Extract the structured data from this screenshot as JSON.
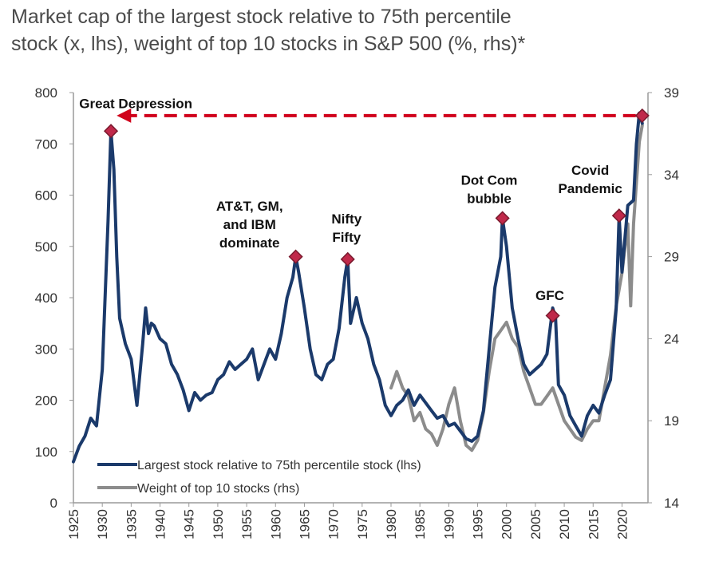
{
  "chart_data": {
    "type": "line",
    "title": "Market cap of the largest stock relative to 75th percentile stock (x, lhs), weight of top 10 stocks in S&P 500 (%, rhs)*",
    "title_line1": "Market cap of the largest stock relative to 75th percentile",
    "title_line2": "stock (x, lhs), weight of top 10 stocks in S&P 500 (%, rhs)*",
    "x_ticks": [
      "1925",
      "1930",
      "1935",
      "1940",
      "1945",
      "1950",
      "1955",
      "1960",
      "1965",
      "1970",
      "1975",
      "1980",
      "1985",
      "1990",
      "1995",
      "2000",
      "2005",
      "2010",
      "2015",
      "2020"
    ],
    "xlim": [
      1925,
      2024.5
    ],
    "y_left": {
      "ticks": [
        "0",
        "100",
        "200",
        "300",
        "400",
        "500",
        "600",
        "700",
        "800"
      ],
      "lim": [
        0,
        800
      ]
    },
    "y_right": {
      "ticks": [
        "14",
        "19",
        "24",
        "29",
        "34",
        "39"
      ],
      "lim": [
        14,
        39
      ]
    },
    "series": [
      {
        "name": "Largest stock relative to 75th percentile stock (lhs)",
        "axis": "left",
        "color": "#1b3a6b",
        "points": [
          [
            1925,
            80
          ],
          [
            1926,
            110
          ],
          [
            1927,
            130
          ],
          [
            1928,
            165
          ],
          [
            1929,
            150
          ],
          [
            1930,
            260
          ],
          [
            1931,
            550
          ],
          [
            1931.5,
            725
          ],
          [
            1932,
            650
          ],
          [
            1932.5,
            480
          ],
          [
            1933,
            360
          ],
          [
            1934,
            310
          ],
          [
            1935,
            280
          ],
          [
            1936,
            190
          ],
          [
            1937,
            310
          ],
          [
            1937.5,
            380
          ],
          [
            1938,
            330
          ],
          [
            1938.5,
            350
          ],
          [
            1939,
            345
          ],
          [
            1940,
            320
          ],
          [
            1941,
            310
          ],
          [
            1942,
            270
          ],
          [
            1943,
            250
          ],
          [
            1944,
            220
          ],
          [
            1945,
            180
          ],
          [
            1946,
            215
          ],
          [
            1947,
            200
          ],
          [
            1948,
            210
          ],
          [
            1949,
            215
          ],
          [
            1950,
            240
          ],
          [
            1951,
            250
          ],
          [
            1952,
            275
          ],
          [
            1953,
            260
          ],
          [
            1954,
            270
          ],
          [
            1955,
            280
          ],
          [
            1956,
            300
          ],
          [
            1957,
            240
          ],
          [
            1958,
            270
          ],
          [
            1959,
            300
          ],
          [
            1960,
            280
          ],
          [
            1961,
            330
          ],
          [
            1962,
            400
          ],
          [
            1963,
            440
          ],
          [
            1963.5,
            480
          ],
          [
            1964,
            450
          ],
          [
            1965,
            380
          ],
          [
            1966,
            300
          ],
          [
            1967,
            250
          ],
          [
            1968,
            240
          ],
          [
            1969,
            270
          ],
          [
            1970,
            280
          ],
          [
            1971,
            340
          ],
          [
            1972,
            440
          ],
          [
            1972.5,
            475
          ],
          [
            1973,
            350
          ],
          [
            1974,
            400
          ],
          [
            1975,
            350
          ],
          [
            1976,
            320
          ],
          [
            1977,
            270
          ],
          [
            1978,
            240
          ],
          [
            1979,
            190
          ],
          [
            1980,
            170
          ],
          [
            1981,
            190
          ],
          [
            1982,
            200
          ],
          [
            1983,
            220
          ],
          [
            1984,
            190
          ],
          [
            1985,
            210
          ],
          [
            1986,
            195
          ],
          [
            1987,
            180
          ],
          [
            1988,
            165
          ],
          [
            1989,
            170
          ],
          [
            1990,
            150
          ],
          [
            1991,
            155
          ],
          [
            1992,
            140
          ],
          [
            1993,
            125
          ],
          [
            1994,
            120
          ],
          [
            1995,
            130
          ],
          [
            1996,
            180
          ],
          [
            1997,
            300
          ],
          [
            1998,
            420
          ],
          [
            1999,
            480
          ],
          [
            1999.3,
            555
          ],
          [
            2000,
            500
          ],
          [
            2001,
            380
          ],
          [
            2002,
            320
          ],
          [
            2003,
            270
          ],
          [
            2004,
            250
          ],
          [
            2005,
            260
          ],
          [
            2006,
            270
          ],
          [
            2007,
            290
          ],
          [
            2008,
            380
          ],
          [
            2008.5,
            360
          ],
          [
            2009,
            230
          ],
          [
            2010,
            210
          ],
          [
            2011,
            170
          ],
          [
            2012,
            150
          ],
          [
            2013,
            130
          ],
          [
            2014,
            170
          ],
          [
            2015,
            190
          ],
          [
            2016,
            175
          ],
          [
            2017,
            210
          ],
          [
            2018,
            240
          ],
          [
            2019,
            380
          ],
          [
            2019.5,
            560
          ],
          [
            2020,
            450
          ],
          [
            2021,
            580
          ],
          [
            2022,
            590
          ],
          [
            2022.5,
            700
          ],
          [
            2023,
            760
          ],
          [
            2023.5,
            740
          ]
        ]
      },
      {
        "name": "Weight of top 10 stocks (rhs)",
        "axis": "right",
        "color": "#8c8c8c",
        "points": [
          [
            1980,
            21
          ],
          [
            1981,
            22
          ],
          [
            1982,
            21
          ],
          [
            1983,
            20.5
          ],
          [
            1984,
            19
          ],
          [
            1985,
            19.5
          ],
          [
            1986,
            18.5
          ],
          [
            1987,
            18.2
          ],
          [
            1988,
            17.5
          ],
          [
            1989,
            18.5
          ],
          [
            1990,
            20
          ],
          [
            1991,
            21
          ],
          [
            1992,
            19
          ],
          [
            1993,
            17.5
          ],
          [
            1994,
            17.2
          ],
          [
            1995,
            17.8
          ],
          [
            1996,
            19.5
          ],
          [
            1997,
            22
          ],
          [
            1998,
            24
          ],
          [
            1999,
            24.5
          ],
          [
            2000,
            25
          ],
          [
            2001,
            24
          ],
          [
            2002,
            23.5
          ],
          [
            2003,
            22
          ],
          [
            2004,
            21
          ],
          [
            2005,
            20
          ],
          [
            2006,
            20
          ],
          [
            2007,
            20.5
          ],
          [
            2008,
            21
          ],
          [
            2009,
            20
          ],
          [
            2010,
            19
          ],
          [
            2011,
            18.5
          ],
          [
            2012,
            18
          ],
          [
            2013,
            17.8
          ],
          [
            2014,
            18.5
          ],
          [
            2015,
            19
          ],
          [
            2016,
            19
          ],
          [
            2017,
            21
          ],
          [
            2018,
            23
          ],
          [
            2019,
            26
          ],
          [
            2020,
            28
          ],
          [
            2021,
            31
          ],
          [
            2021.5,
            26
          ],
          [
            2022,
            31
          ],
          [
            2023,
            36
          ],
          [
            2023.5,
            37
          ]
        ]
      }
    ],
    "annotations": [
      {
        "lines": [
          "Great Depression"
        ],
        "year": 1931.5,
        "value": 725,
        "text_year": 1935.8,
        "text_value": 770
      },
      {
        "lines": [
          "AT&T, GM,",
          "and IBM",
          "dominate"
        ],
        "year": 1963.5,
        "value": 480,
        "text_year": 1955.5,
        "text_value": 570
      },
      {
        "lines": [
          "Nifty",
          "Fifty"
        ],
        "year": 1972.5,
        "value": 475,
        "text_year": 1972.3,
        "text_value": 545
      },
      {
        "lines": [
          "Dot Com",
          "bubble"
        ],
        "year": 1999.3,
        "value": 555,
        "text_year": 1997,
        "text_value": 620
      },
      {
        "lines": [
          "GFC"
        ],
        "year": 2008,
        "value": 365,
        "text_year": 2007.5,
        "text_value": 395
      },
      {
        "lines": [
          "Covid",
          "Pandemic"
        ],
        "year": 2019.5,
        "value": 560,
        "text_year": 2014.5,
        "text_value": 640
      },
      {
        "lines": [],
        "year": 2023.5,
        "value": 755
      }
    ],
    "arrow": {
      "from_year": 2023.5,
      "to_year": 1932.5,
      "value": 755,
      "color": "#d0021b"
    },
    "legend": {
      "placement": "bottom-left",
      "items": [
        "Largest stock relative to 75th percentile stock (lhs)",
        "Weight of top 10 stocks (rhs)"
      ]
    }
  },
  "colors": {
    "primary": "#1b3a6b",
    "secondary": "#8c8c8c",
    "marker_fill": "#c0294a",
    "arrow": "#d0021b",
    "title": "#4a4a4a"
  }
}
